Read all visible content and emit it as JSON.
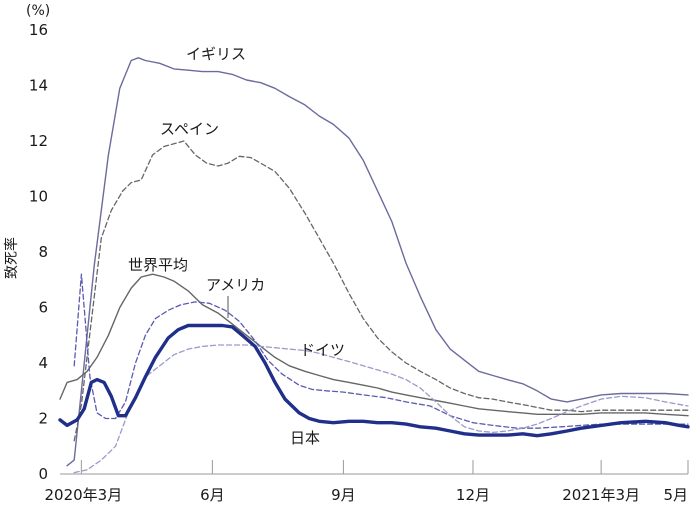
{
  "colors": {
    "japan": "#1f2f8a",
    "uk": "#6b6b9e",
    "spain": "#666666",
    "world": "#666666",
    "usa": "#5a5ab0",
    "germany": "#9a9acc",
    "axis": "#999999"
  },
  "chart_data": {
    "type": "line",
    "title": "",
    "xlabel": "",
    "ylabel": "致死率",
    "y_unit_label": "(%)",
    "ylim": [
      0,
      16
    ],
    "yticks": [
      "0",
      "2",
      "4",
      "6",
      "8",
      "10",
      "12",
      "14",
      "16"
    ],
    "x_ticks": [
      {
        "label": "2020年3月",
        "date": "2020-03-01"
      },
      {
        "label": "6月",
        "date": "2020-06-01"
      },
      {
        "label": "9月",
        "date": "2020-09-01"
      },
      {
        "label": "12月",
        "date": "2020-12-01"
      },
      {
        "label": "2021年3月",
        "date": "2021-03-01"
      },
      {
        "label": "5月",
        "date": "2021-05-01"
      }
    ],
    "xlim": [
      "2020-02-15",
      "2021-05-01"
    ],
    "series": [
      {
        "name": "イギリス",
        "style": "solid",
        "color_key": "uk",
        "x": [
          "2020-02-20",
          "2020-02-25",
          "2020-03-01",
          "2020-03-10",
          "2020-03-20",
          "2020-03-28",
          "2020-04-05",
          "2020-04-10",
          "2020-04-15",
          "2020-04-25",
          "2020-05-05",
          "2020-05-15",
          "2020-05-25",
          "2020-06-05",
          "2020-06-15",
          "2020-06-25",
          "2020-07-05",
          "2020-07-15",
          "2020-07-25",
          "2020-08-05",
          "2020-08-15",
          "2020-08-25",
          "2020-09-05",
          "2020-09-15",
          "2020-09-25",
          "2020-10-05",
          "2020-10-15",
          "2020-10-25",
          "2020-11-05",
          "2020-11-15",
          "2020-11-25",
          "2020-12-05",
          "2020-12-15",
          "2020-12-25",
          "2021-01-05",
          "2021-01-15",
          "2021-01-25",
          "2021-02-05",
          "2021-02-15",
          "2021-03-01",
          "2021-03-15",
          "2021-04-01",
          "2021-04-15",
          "2021-05-01"
        ],
        "y": [
          0.3,
          0.5,
          3.0,
          7.5,
          11.5,
          13.9,
          14.9,
          15.0,
          14.9,
          14.8,
          14.6,
          14.55,
          14.5,
          14.5,
          14.4,
          14.2,
          14.1,
          13.9,
          13.6,
          13.3,
          12.9,
          12.6,
          12.1,
          11.3,
          10.2,
          9.1,
          7.6,
          6.4,
          5.2,
          4.5,
          4.1,
          3.7,
          3.55,
          3.4,
          3.25,
          3.0,
          2.7,
          2.6,
          2.7,
          2.85,
          2.9,
          2.9,
          2.9,
          2.85
        ]
      },
      {
        "name": "スペイン",
        "style": "dashed",
        "color_key": "spain",
        "x": [
          "2020-02-25",
          "2020-03-01",
          "2020-03-08",
          "2020-03-15",
          "2020-03-22",
          "2020-03-30",
          "2020-04-05",
          "2020-04-12",
          "2020-04-20",
          "2020-04-28",
          "2020-05-05",
          "2020-05-12",
          "2020-05-20",
          "2020-05-28",
          "2020-06-05",
          "2020-06-12",
          "2020-06-20",
          "2020-06-28",
          "2020-07-05",
          "2020-07-15",
          "2020-07-25",
          "2020-08-05",
          "2020-08-15",
          "2020-08-25",
          "2020-09-05",
          "2020-09-15",
          "2020-09-25",
          "2020-10-05",
          "2020-10-15",
          "2020-10-25",
          "2020-11-05",
          "2020-11-15",
          "2020-11-25",
          "2020-12-05",
          "2020-12-15",
          "2020-12-25",
          "2021-01-05",
          "2021-01-15",
          "2021-01-25",
          "2021-02-05",
          "2021-02-15",
          "2021-03-01",
          "2021-03-15",
          "2021-04-01",
          "2021-04-15",
          "2021-05-01"
        ],
        "y": [
          1.2,
          2.5,
          5.5,
          8.5,
          9.5,
          10.2,
          10.5,
          10.6,
          11.5,
          11.8,
          11.9,
          12.0,
          11.5,
          11.2,
          11.1,
          11.2,
          11.45,
          11.4,
          11.2,
          10.9,
          10.3,
          9.4,
          8.5,
          7.6,
          6.5,
          5.6,
          4.9,
          4.4,
          4.0,
          3.7,
          3.4,
          3.1,
          2.9,
          2.75,
          2.7,
          2.6,
          2.5,
          2.4,
          2.3,
          2.3,
          2.25,
          2.3,
          2.3,
          2.3,
          2.3,
          2.3
        ]
      },
      {
        "name": "世界平均",
        "style": "solid",
        "color_key": "world",
        "x": [
          "2020-02-15",
          "2020-02-20",
          "2020-02-27",
          "2020-03-05",
          "2020-03-12",
          "2020-03-20",
          "2020-03-28",
          "2020-04-05",
          "2020-04-12",
          "2020-04-20",
          "2020-04-28",
          "2020-05-05",
          "2020-05-15",
          "2020-05-25",
          "2020-06-05",
          "2020-06-15",
          "2020-06-25",
          "2020-07-05",
          "2020-07-15",
          "2020-07-25",
          "2020-08-05",
          "2020-08-15",
          "2020-08-25",
          "2020-09-05",
          "2020-09-15",
          "2020-09-25",
          "2020-10-05",
          "2020-10-15",
          "2020-10-25",
          "2020-11-05",
          "2020-11-15",
          "2020-11-25",
          "2020-12-05",
          "2020-12-15",
          "2020-12-25",
          "2021-01-05",
          "2021-01-15",
          "2021-01-25",
          "2021-02-05",
          "2021-02-15",
          "2021-03-01",
          "2021-03-15",
          "2021-04-01",
          "2021-04-15",
          "2021-05-01"
        ],
        "y": [
          2.7,
          3.3,
          3.4,
          3.7,
          4.2,
          5.0,
          6.0,
          6.7,
          7.1,
          7.2,
          7.1,
          6.95,
          6.6,
          6.1,
          5.8,
          5.4,
          5.0,
          4.6,
          4.2,
          3.9,
          3.7,
          3.55,
          3.4,
          3.3,
          3.2,
          3.1,
          2.95,
          2.85,
          2.75,
          2.65,
          2.55,
          2.45,
          2.35,
          2.3,
          2.25,
          2.2,
          2.15,
          2.15,
          2.15,
          2.15,
          2.2,
          2.2,
          2.2,
          2.15,
          2.1
        ]
      },
      {
        "name": "アメリカ",
        "style": "dashed",
        "color_key": "usa",
        "x": [
          "2020-02-25",
          "2020-03-01",
          "2020-03-07",
          "2020-03-12",
          "2020-03-18",
          "2020-03-25",
          "2020-04-01",
          "2020-04-08",
          "2020-04-15",
          "2020-04-22",
          "2020-05-01",
          "2020-05-10",
          "2020-05-20",
          "2020-05-30",
          "2020-06-10",
          "2020-06-20",
          "2020-07-01",
          "2020-07-10",
          "2020-07-20",
          "2020-08-01",
          "2020-08-10",
          "2020-08-20",
          "2020-09-01",
          "2020-09-15",
          "2020-10-01",
          "2020-10-15",
          "2020-11-01",
          "2020-11-15",
          "2020-12-01",
          "2020-12-15",
          "2021-01-01",
          "2021-01-15",
          "2021-02-01",
          "2021-02-15",
          "2021-03-01",
          "2021-03-15",
          "2021-04-01",
          "2021-04-15",
          "2021-05-01"
        ],
        "y": [
          3.9,
          7.2,
          3.5,
          2.2,
          2.0,
          2.0,
          2.6,
          4.0,
          5.0,
          5.6,
          5.9,
          6.1,
          6.2,
          6.15,
          5.9,
          5.5,
          4.8,
          4.1,
          3.6,
          3.2,
          3.05,
          3.0,
          2.95,
          2.85,
          2.75,
          2.6,
          2.45,
          2.1,
          1.85,
          1.75,
          1.65,
          1.65,
          1.7,
          1.75,
          1.8,
          1.8,
          1.8,
          1.8,
          1.8
        ]
      },
      {
        "name": "ドイツ",
        "style": "dashed",
        "color_key": "germany",
        "x": [
          "2020-02-25",
          "2020-03-05",
          "2020-03-15",
          "2020-03-25",
          "2020-04-05",
          "2020-04-15",
          "2020-04-25",
          "2020-05-05",
          "2020-05-15",
          "2020-05-25",
          "2020-06-05",
          "2020-06-15",
          "2020-06-25",
          "2020-07-05",
          "2020-07-15",
          "2020-07-25",
          "2020-08-05",
          "2020-08-15",
          "2020-08-25",
          "2020-09-05",
          "2020-09-15",
          "2020-09-25",
          "2020-10-05",
          "2020-10-15",
          "2020-10-25",
          "2020-11-05",
          "2020-11-15",
          "2020-11-25",
          "2020-12-05",
          "2020-12-15",
          "2020-12-25",
          "2021-01-05",
          "2021-01-15",
          "2021-01-25",
          "2021-02-05",
          "2021-02-15",
          "2021-03-01",
          "2021-03-15",
          "2021-04-01",
          "2021-04-15",
          "2021-05-01"
        ],
        "y": [
          0.05,
          0.15,
          0.5,
          1.0,
          2.5,
          3.5,
          3.9,
          4.3,
          4.5,
          4.6,
          4.65,
          4.65,
          4.65,
          4.6,
          4.55,
          4.5,
          4.45,
          4.35,
          4.2,
          4.05,
          3.9,
          3.75,
          3.6,
          3.4,
          3.1,
          2.6,
          2.1,
          1.7,
          1.55,
          1.5,
          1.55,
          1.65,
          1.8,
          2.0,
          2.25,
          2.45,
          2.7,
          2.8,
          2.75,
          2.6,
          2.45
        ]
      },
      {
        "name": "日本",
        "style": "solid-bold",
        "color_key": "japan",
        "x": [
          "2020-02-15",
          "2020-02-20",
          "2020-02-27",
          "2020-03-03",
          "2020-03-08",
          "2020-03-12",
          "2020-03-17",
          "2020-03-22",
          "2020-03-27",
          "2020-04-01",
          "2020-04-08",
          "2020-04-15",
          "2020-04-22",
          "2020-05-01",
          "2020-05-08",
          "2020-05-15",
          "2020-05-22",
          "2020-06-01",
          "2020-06-08",
          "2020-06-15",
          "2020-06-22",
          "2020-07-01",
          "2020-07-08",
          "2020-07-15",
          "2020-07-22",
          "2020-08-01",
          "2020-08-08",
          "2020-08-15",
          "2020-08-25",
          "2020-09-05",
          "2020-09-15",
          "2020-09-25",
          "2020-10-05",
          "2020-10-15",
          "2020-10-25",
          "2020-11-05",
          "2020-11-15",
          "2020-11-25",
          "2020-12-05",
          "2020-12-15",
          "2020-12-25",
          "2021-01-05",
          "2021-01-15",
          "2021-01-25",
          "2021-02-05",
          "2021-02-15",
          "2021-03-01",
          "2021-03-15",
          "2021-04-01",
          "2021-04-15",
          "2021-04-25",
          "2021-05-01"
        ],
        "y": [
          1.95,
          1.75,
          1.95,
          2.35,
          3.3,
          3.4,
          3.3,
          2.8,
          2.1,
          2.1,
          2.75,
          3.5,
          4.2,
          4.9,
          5.2,
          5.35,
          5.35,
          5.35,
          5.35,
          5.3,
          5.0,
          4.6,
          4.0,
          3.3,
          2.7,
          2.2,
          2.0,
          1.9,
          1.85,
          1.9,
          1.9,
          1.85,
          1.85,
          1.8,
          1.7,
          1.65,
          1.55,
          1.45,
          1.4,
          1.4,
          1.4,
          1.45,
          1.38,
          1.45,
          1.55,
          1.65,
          1.75,
          1.85,
          1.9,
          1.85,
          1.75,
          1.7
        ]
      }
    ],
    "annotations": [
      {
        "text": "イギリス",
        "series": "イギリス"
      },
      {
        "text": "スペイン",
        "series": "スペイン"
      },
      {
        "text": "世界平均",
        "series": "世界平均"
      },
      {
        "text": "アメリカ",
        "series": "アメリカ"
      },
      {
        "text": "ドイツ",
        "series": "ドイツ"
      },
      {
        "text": "日本",
        "series": "日本"
      }
    ],
    "grid": false,
    "legend": "none"
  }
}
